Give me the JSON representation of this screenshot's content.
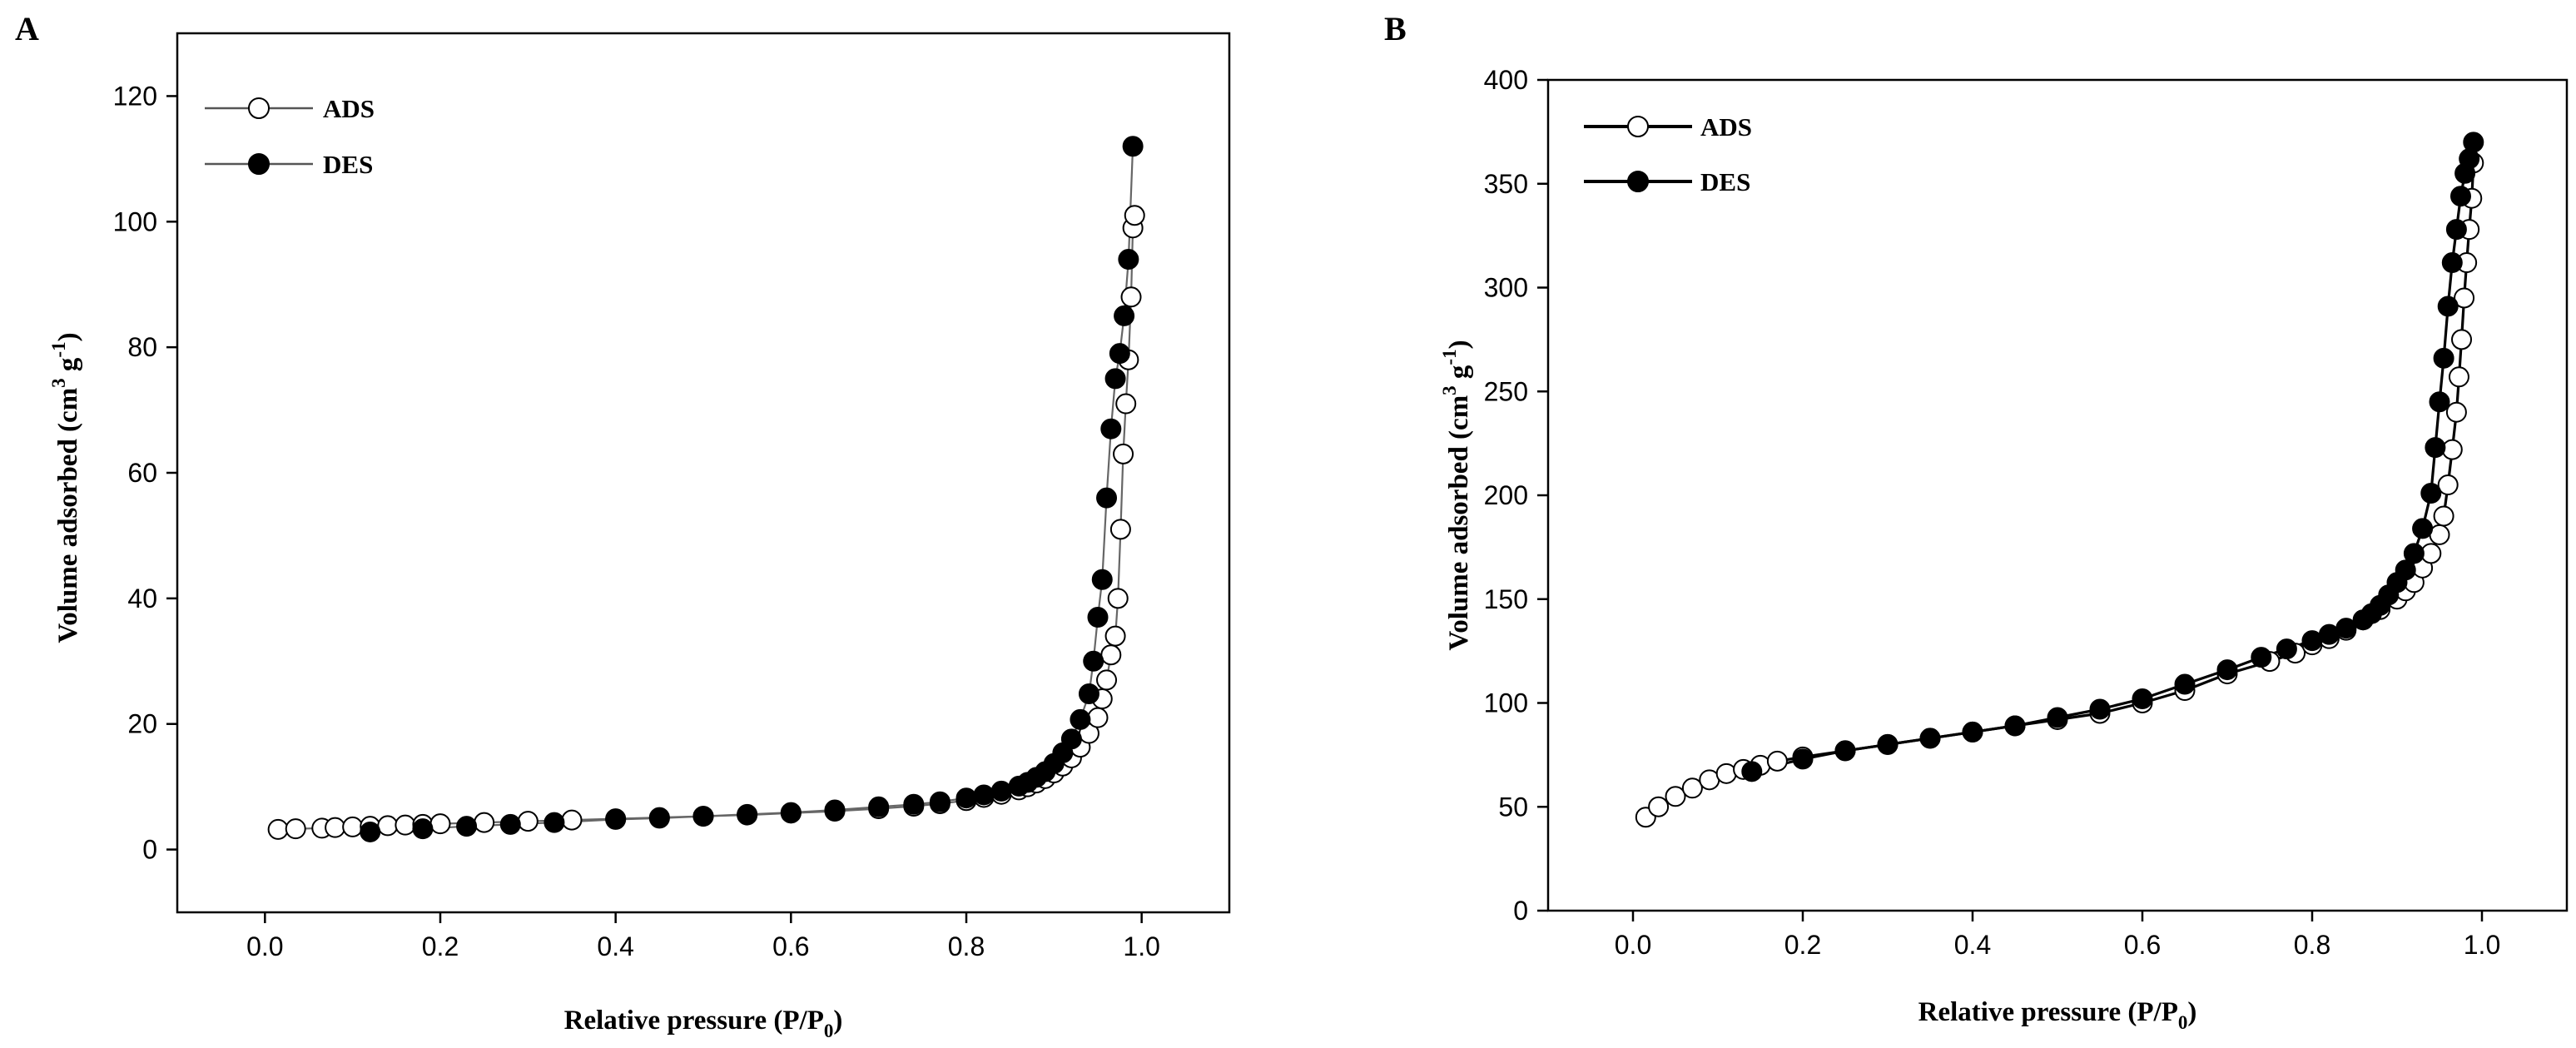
{
  "chart_data": [
    {
      "type": "line",
      "panel_label": "A",
      "xlabel": {
        "main": "Relative pressure (P/P",
        "sub": "0",
        "end": ")"
      },
      "ylabel": {
        "main": "Volume adsorbed (cm",
        "sup1": "3",
        "mid": " g",
        "sup2": "-1",
        "end": ")"
      },
      "xlim": [
        -0.1,
        1.1
      ],
      "ylim": [
        -10,
        130
      ],
      "xticks": [
        0.0,
        0.2,
        0.4,
        0.6,
        0.8,
        1.0
      ],
      "xtick_labels": [
        "0.0",
        "0.2",
        "0.4",
        "0.6",
        "0.8",
        "1.0"
      ],
      "yticks": [
        0,
        20,
        40,
        60,
        80,
        100,
        120
      ],
      "ytick_labels": [
        "0",
        "20",
        "40",
        "60",
        "80",
        "100",
        "120"
      ],
      "legend_position": "top-left",
      "grid": false,
      "series": [
        {
          "name": "ADS",
          "marker": "open-circle",
          "x": [
            0.015,
            0.035,
            0.065,
            0.08,
            0.1,
            0.12,
            0.14,
            0.16,
            0.18,
            0.2,
            0.25,
            0.3,
            0.35,
            0.4,
            0.45,
            0.5,
            0.55,
            0.6,
            0.65,
            0.7,
            0.74,
            0.77,
            0.8,
            0.82,
            0.84,
            0.86,
            0.87,
            0.88,
            0.89,
            0.9,
            0.91,
            0.92,
            0.93,
            0.94,
            0.95,
            0.955,
            0.96,
            0.965,
            0.97,
            0.973,
            0.976,
            0.979,
            0.982,
            0.985,
            0.988,
            0.99,
            0.992
          ],
          "y": [
            3.2,
            3.3,
            3.4,
            3.5,
            3.6,
            3.7,
            3.8,
            3.9,
            4.0,
            4.1,
            4.3,
            4.5,
            4.7,
            4.9,
            5.1,
            5.3,
            5.5,
            5.8,
            6.1,
            6.5,
            6.9,
            7.3,
            7.8,
            8.3,
            8.8,
            9.5,
            10.0,
            10.6,
            11.3,
            12.2,
            13.3,
            14.6,
            16.3,
            18.5,
            21.0,
            24.0,
            27.0,
            31.0,
            34.0,
            40.0,
            51.0,
            63.0,
            71.0,
            78.0,
            88.0,
            99.0,
            101.0
          ]
        },
        {
          "name": "DES",
          "marker": "filled-circle",
          "x": [
            0.12,
            0.18,
            0.23,
            0.28,
            0.33,
            0.4,
            0.45,
            0.5,
            0.55,
            0.6,
            0.65,
            0.7,
            0.74,
            0.77,
            0.8,
            0.82,
            0.84,
            0.86,
            0.87,
            0.88,
            0.89,
            0.9,
            0.91,
            0.92,
            0.93,
            0.94,
            0.945,
            0.95,
            0.955,
            0.96,
            0.965,
            0.97,
            0.975,
            0.98,
            0.985,
            0.99
          ],
          "y": [
            2.8,
            3.3,
            3.7,
            4.0,
            4.3,
            4.8,
            5.0,
            5.3,
            5.6,
            5.9,
            6.3,
            6.8,
            7.2,
            7.6,
            8.2,
            8.7,
            9.3,
            10.1,
            10.7,
            11.5,
            12.4,
            13.7,
            15.4,
            17.6,
            20.7,
            24.8,
            30.0,
            37.0,
            43.0,
            56.0,
            67.0,
            75.0,
            79.0,
            85.0,
            94.0,
            112.0
          ]
        }
      ]
    },
    {
      "type": "line",
      "panel_label": "B",
      "xlabel": {
        "main": "Relative pressure (P/P",
        "sub": "0",
        "end": ")"
      },
      "ylabel": {
        "main": "Volume adsorbed (cm",
        "sup1": "3",
        "mid": " g",
        "sup2": "-1",
        "end": ")"
      },
      "xlim": [
        -0.1,
        1.1
      ],
      "ylim": [
        0,
        400
      ],
      "xticks": [
        0.0,
        0.2,
        0.4,
        0.6,
        0.8,
        1.0
      ],
      "xtick_labels": [
        "0.0",
        "0.2",
        "0.4",
        "0.6",
        "0.8",
        "1.0"
      ],
      "yticks": [
        0,
        50,
        100,
        150,
        200,
        250,
        300,
        350,
        400
      ],
      "ytick_labels": [
        "0",
        "50",
        "100",
        "150",
        "200",
        "250",
        "300",
        "350",
        "400"
      ],
      "legend_position": "top-left",
      "grid": false,
      "series": [
        {
          "name": "ADS",
          "marker": "open-circle",
          "x": [
            0.015,
            0.03,
            0.05,
            0.07,
            0.09,
            0.11,
            0.13,
            0.15,
            0.17,
            0.2,
            0.25,
            0.3,
            0.35,
            0.4,
            0.45,
            0.5,
            0.55,
            0.6,
            0.65,
            0.7,
            0.75,
            0.78,
            0.8,
            0.82,
            0.84,
            0.86,
            0.88,
            0.9,
            0.91,
            0.92,
            0.93,
            0.94,
            0.95,
            0.955,
            0.96,
            0.965,
            0.97,
            0.973,
            0.976,
            0.979,
            0.982,
            0.985,
            0.988,
            0.99
          ],
          "y": [
            45,
            50,
            55,
            59,
            63,
            66,
            68,
            70,
            72,
            74,
            77,
            80,
            83,
            86,
            89,
            92,
            95,
            100,
            106,
            114,
            120,
            124,
            128,
            131,
            135,
            140,
            145,
            150,
            154,
            158,
            165,
            172,
            181,
            190,
            205,
            222,
            240,
            257,
            275,
            295,
            312,
            328,
            343,
            360
          ]
        },
        {
          "name": "DES",
          "marker": "filled-circle",
          "x": [
            0.14,
            0.2,
            0.25,
            0.3,
            0.35,
            0.4,
            0.45,
            0.5,
            0.55,
            0.6,
            0.65,
            0.7,
            0.74,
            0.77,
            0.8,
            0.82,
            0.84,
            0.86,
            0.87,
            0.88,
            0.89,
            0.9,
            0.91,
            0.92,
            0.93,
            0.94,
            0.945,
            0.95,
            0.955,
            0.96,
            0.965,
            0.97,
            0.975,
            0.98,
            0.985,
            0.99
          ],
          "y": [
            67,
            73,
            77,
            80,
            83,
            86,
            89,
            93,
            97,
            102,
            109,
            116,
            122,
            126,
            130,
            133,
            136,
            140,
            143,
            147,
            152,
            158,
            164,
            172,
            184,
            201,
            223,
            245,
            266,
            291,
            312,
            328,
            344,
            355,
            362,
            370
          ]
        }
      ]
    }
  ]
}
